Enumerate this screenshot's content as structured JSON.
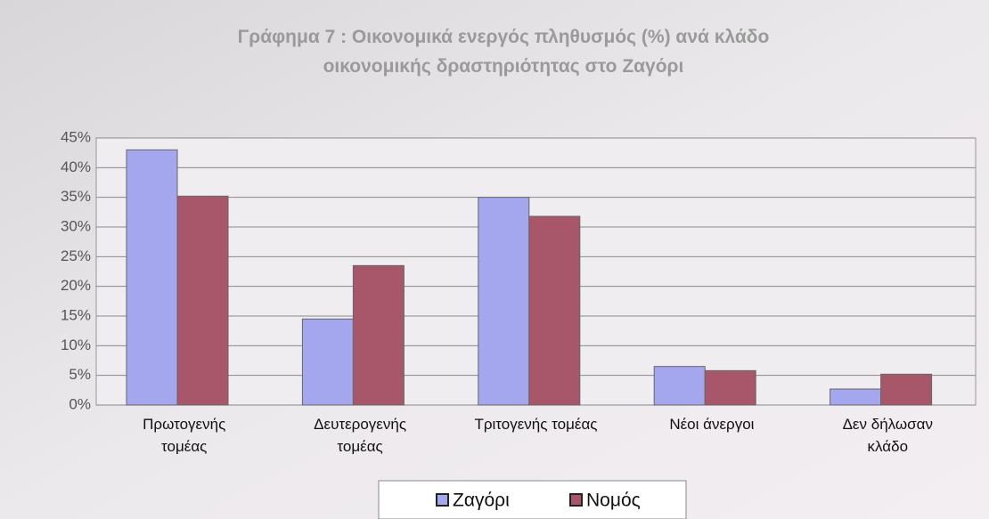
{
  "chart_data": {
    "type": "bar",
    "title": "Γράφημα 7 : Οικονομικά ενεργός πληθυσμός (%) ανά κλάδο\nοικονομικής δραστηριότητας στο Ζαγόρι",
    "categories": [
      "Πρωτογενής\nτομέας",
      "Δευτερογενής\nτομέας",
      "Τριτογενής τομέας",
      "Νέοι άνεργοι",
      "Δεν δήλωσαν\nκλάδο"
    ],
    "series": [
      {
        "name": "Ζαγόρι",
        "color": "#a4a6ee",
        "values": [
          43,
          14.5,
          35,
          6.5,
          2.7
        ]
      },
      {
        "name": "Νομός",
        "color": "#a8576a",
        "values": [
          35.2,
          23.5,
          31.8,
          5.8,
          5.2
        ]
      }
    ],
    "ylim": [
      0,
      45
    ],
    "yticks": [
      {
        "value": 0,
        "label": "0%"
      },
      {
        "value": 5,
        "label": "5%"
      },
      {
        "value": 10,
        "label": "10%"
      },
      {
        "value": 15,
        "label": "15%"
      },
      {
        "value": 20,
        "label": "20%"
      },
      {
        "value": 25,
        "label": "25%"
      },
      {
        "value": 30,
        "label": "30%"
      },
      {
        "value": 35,
        "label": "35%"
      },
      {
        "value": 40,
        "label": "40%"
      },
      {
        "value": 45,
        "label": "45%"
      }
    ],
    "grid": true
  }
}
